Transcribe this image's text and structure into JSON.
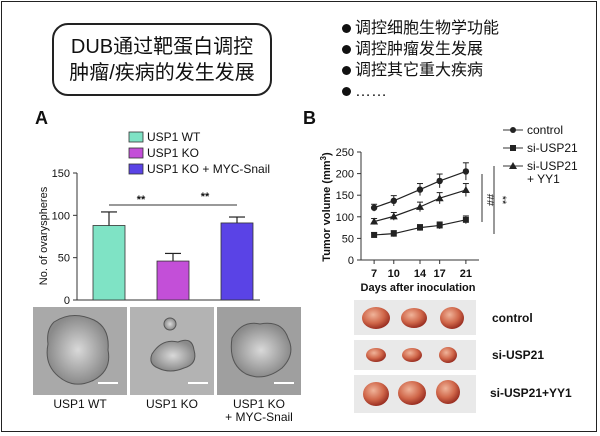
{
  "title": {
    "line1": "DUB通过靶蛋白调控",
    "line2": "肿瘤/疾病的发生发展"
  },
  "bullets": [
    "调控细胞生物学功能",
    "调控肿瘤发生发展",
    "调控其它重大疾病",
    "……"
  ],
  "panel_labels": {
    "a": "A",
    "b": "B"
  },
  "colors": {
    "wt": "#7fe3c5",
    "ko": "#c34fd8",
    "ko_snail": "#5a43e6"
  },
  "chart_data": [
    {
      "type": "bar",
      "ylabel": "No. of ovaryspheres",
      "ylim": [
        0,
        150
      ],
      "yticks": [
        "0",
        "50",
        "100",
        "150"
      ],
      "categories": [
        "USP1 WT",
        "USP1 KO",
        "USP1 KO + MYC-Snail"
      ],
      "legend": [
        "USP1 WT",
        "USP1 KO",
        "USP1 KO + MYC-Snail"
      ],
      "values": [
        88,
        46,
        91
      ],
      "errors": [
        16,
        9,
        7
      ],
      "significance": [
        "**",
        "**"
      ],
      "image_labels": [
        [
          "USP1 WT"
        ],
        [
          "USP1 KO"
        ],
        [
          "USP1 KO",
          "+ MYC-Snail"
        ]
      ]
    },
    {
      "type": "line",
      "ylabel_main": "Tumor volume (mm",
      "ylabel_sup": "3",
      "ylabel_end": ")",
      "xlabel": "Days after inoculation",
      "x": [
        7,
        10,
        14,
        17,
        21
      ],
      "ylim": [
        0,
        250
      ],
      "yticks": [
        "0",
        "50",
        "100",
        "150",
        "200",
        "250"
      ],
      "series": [
        {
          "name": "control",
          "values": [
            121,
            137,
            163,
            183,
            205
          ],
          "errors": [
            8,
            12,
            14,
            16,
            20
          ],
          "marker": "circle"
        },
        {
          "name": "si-USP21",
          "values": [
            58,
            61,
            75,
            80,
            93
          ],
          "errors": [
            5,
            7,
            7,
            8,
            9
          ],
          "marker": "square"
        },
        {
          "name": "si-USP21 + YY1",
          "values": [
            89,
            101,
            123,
            143,
            162
          ],
          "errors": [
            7,
            9,
            11,
            13,
            15
          ],
          "marker": "triangle",
          "legend_lines": [
            "si-USP21",
            "+ YY1"
          ]
        }
      ],
      "significance": [
        "##",
        "**"
      ],
      "tumor_row_labels": [
        "control",
        "si-USP21",
        "si-USP21+YY1"
      ]
    }
  ]
}
